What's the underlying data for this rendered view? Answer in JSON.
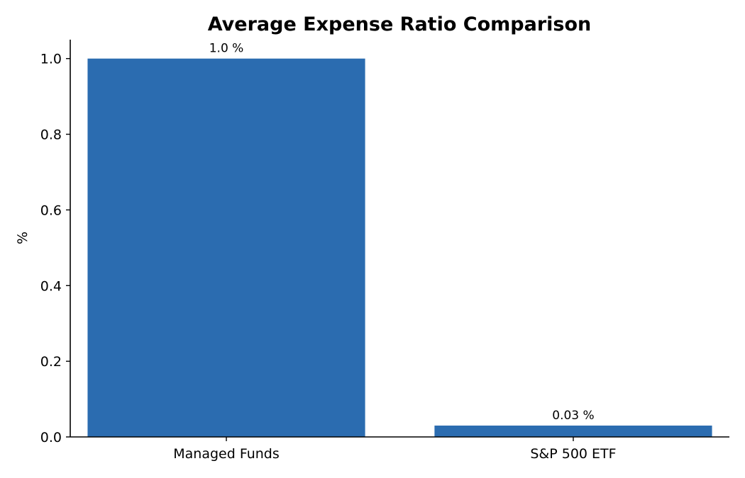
{
  "chart_data": {
    "type": "bar",
    "title": "Average Expense Ratio Comparison",
    "xlabel": "",
    "ylabel": "%",
    "categories": [
      "Managed Funds",
      "S&P 500 ETF"
    ],
    "values": [
      1.0,
      0.03
    ],
    "data_labels": [
      "1.0 %",
      "0.03 %"
    ],
    "ylim": [
      0,
      1.05
    ],
    "yticks": [
      0.0,
      0.2,
      0.4,
      0.6,
      0.8,
      1.0
    ],
    "ytick_labels": [
      "0.0",
      "0.2",
      "0.4",
      "0.6",
      "0.8",
      "1.0"
    ],
    "bar_color": "#2b6cb0",
    "grid": false,
    "legend": "none"
  }
}
